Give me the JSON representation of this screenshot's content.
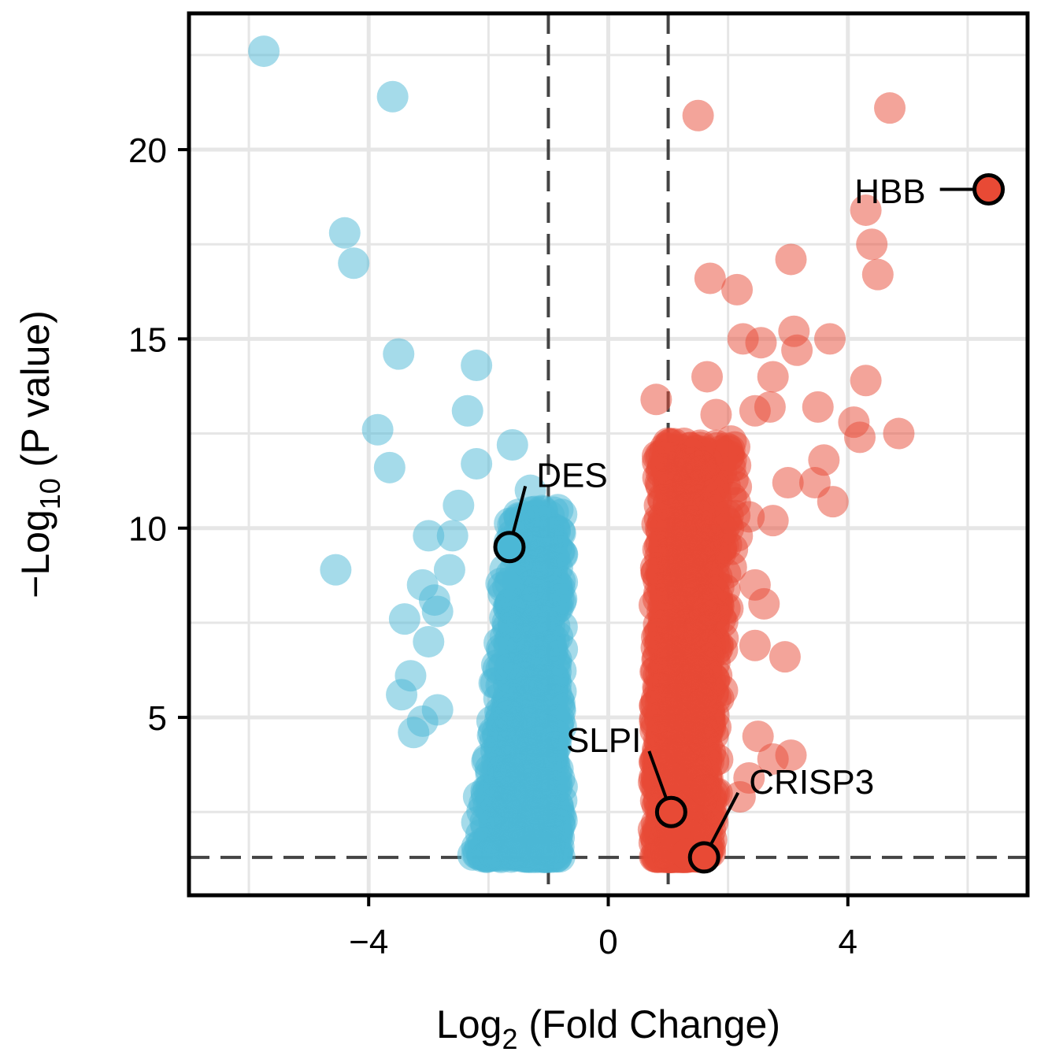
{
  "chart_data": {
    "type": "scatter",
    "title": "",
    "xlabel": {
      "main": "Log",
      "sub": "2",
      "rest": " (Fold Change)"
    },
    "ylabel": {
      "main": "−Log",
      "sub": "10",
      "rest": " (P value)"
    },
    "xlim": [
      -7.0,
      7.0
    ],
    "ylim": [
      0.3,
      23.6
    ],
    "x_ticks": [
      -4,
      0,
      4
    ],
    "x_tick_labels": [
      "−4",
      "0",
      "4"
    ],
    "y_ticks": [
      5,
      10,
      15,
      20
    ],
    "y_tick_labels": [
      "5",
      "10",
      "15",
      "20"
    ],
    "grid": true,
    "thresholds": {
      "log2fc": [
        -1,
        1
      ],
      "neg_log10_p": 1.3
    },
    "colors": {
      "down": "#4bb8d6",
      "up": "#e84a35",
      "grid": "#e6e6e6",
      "threshold": "#444444"
    },
    "series": [
      {
        "key": "down",
        "color": "#4bb8d6",
        "outliers": [
          [
            -5.75,
            22.6
          ],
          [
            -3.6,
            21.4
          ],
          [
            -4.4,
            17.8
          ],
          [
            -4.25,
            17.0
          ],
          [
            -3.5,
            14.6
          ],
          [
            -3.85,
            12.6
          ],
          [
            -3.65,
            11.6
          ],
          [
            -2.2,
            14.3
          ],
          [
            -2.35,
            13.1
          ],
          [
            -4.55,
            8.9
          ],
          [
            -3.4,
            7.6
          ],
          [
            -3.3,
            6.1
          ],
          [
            -3.45,
            5.6
          ],
          [
            -3.1,
            4.9
          ],
          [
            -3.25,
            4.6
          ],
          [
            -2.85,
            5.2
          ],
          [
            -3.0,
            7.0
          ],
          [
            -2.9,
            8.1
          ],
          [
            -3.1,
            8.5
          ],
          [
            -3.0,
            9.8
          ],
          [
            -2.6,
            9.8
          ],
          [
            -1.6,
            12.2
          ],
          [
            -2.2,
            11.7
          ],
          [
            -1.3,
            11.0
          ],
          [
            -2.5,
            10.6
          ],
          [
            -2.65,
            8.9
          ],
          [
            -2.85,
            7.8
          ],
          [
            -1.15,
            10.2
          ],
          [
            -1.0,
            9.0
          ]
        ],
        "cloud": {
          "x_min": -2.6,
          "x_max": -0.75,
          "y_min": 1.3,
          "y_max": 10.5,
          "count": 1100
        }
      },
      {
        "key": "up",
        "color": "#e84a35",
        "outliers": [
          [
            1.5,
            20.9
          ],
          [
            4.7,
            21.1
          ],
          [
            4.3,
            18.4
          ],
          [
            4.4,
            17.5
          ],
          [
            4.5,
            16.7
          ],
          [
            3.05,
            17.1
          ],
          [
            1.7,
            16.6
          ],
          [
            2.15,
            16.3
          ],
          [
            4.3,
            13.9
          ],
          [
            3.7,
            15.0
          ],
          [
            4.1,
            12.8
          ],
          [
            4.2,
            12.4
          ],
          [
            4.85,
            12.5
          ],
          [
            3.5,
            13.2
          ],
          [
            2.75,
            14.0
          ],
          [
            2.25,
            15.0
          ],
          [
            2.55,
            14.9
          ],
          [
            3.1,
            15.2
          ],
          [
            3.15,
            14.7
          ],
          [
            3.6,
            11.8
          ],
          [
            3.75,
            10.7
          ],
          [
            3.45,
            11.2
          ],
          [
            3.0,
            11.2
          ],
          [
            2.75,
            10.2
          ],
          [
            2.95,
            6.6
          ],
          [
            2.35,
            10.3
          ],
          [
            2.45,
            8.5
          ],
          [
            2.6,
            8.0
          ],
          [
            2.45,
            6.9
          ],
          [
            2.5,
            4.5
          ],
          [
            3.05,
            4.0
          ],
          [
            2.75,
            3.9
          ],
          [
            2.35,
            3.4
          ],
          [
            2.2,
            2.9
          ],
          [
            1.65,
            14.0
          ],
          [
            2.7,
            13.2
          ],
          [
            2.45,
            13.1
          ],
          [
            2.05,
            12.3
          ],
          [
            1.8,
            13.0
          ],
          [
            0.8,
            13.4
          ]
        ],
        "cloud": {
          "x_min": 0.75,
          "x_max": 2.4,
          "y_min": 1.3,
          "y_max": 12.3,
          "count": 1600
        }
      }
    ],
    "highlighted": [
      {
        "gene": "HBB",
        "x": 6.35,
        "y": 18.95,
        "color": "#e84a35",
        "label_x": 5.3,
        "label_y": 18.9,
        "anchor": "end"
      },
      {
        "gene": "DES",
        "x": -1.65,
        "y": 9.5,
        "color": "#4bb8d6",
        "label_x": -1.2,
        "label_y": 11.4,
        "anchor": "start"
      },
      {
        "gene": "SLPI",
        "x": 1.05,
        "y": 2.5,
        "color": "#e84a35",
        "label_x": 0.55,
        "label_y": 4.4,
        "anchor": "end"
      },
      {
        "gene": "CRISP3",
        "x": 1.6,
        "y": 1.3,
        "color": "#e84a35",
        "label_x": 2.35,
        "label_y": 3.3,
        "anchor": "start"
      }
    ]
  }
}
